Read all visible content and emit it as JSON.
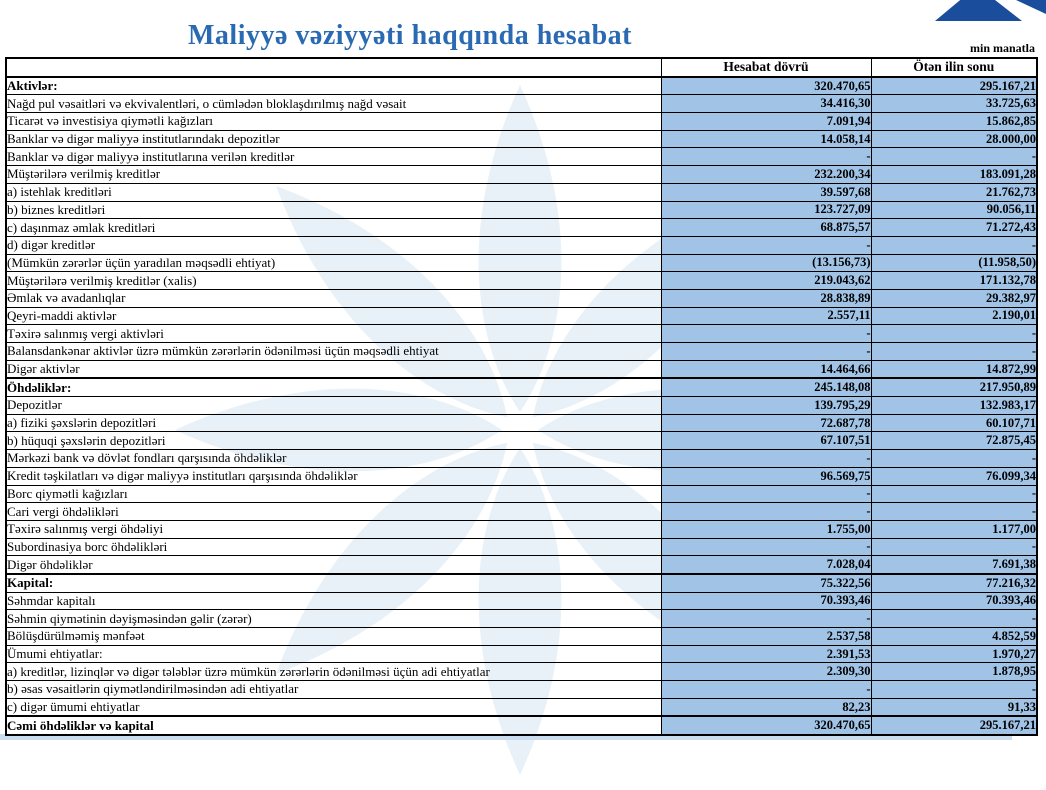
{
  "header": {
    "title": "Maliyyə vəziyyəti haqqında hesabat",
    "unit_note": "min manatla"
  },
  "colors": {
    "title_blue": "#2a6ab2",
    "cell_fill_blue": "#a0c3e6",
    "logo_navy": "#1a4e9c",
    "watermark_blue": "#e8f1f8"
  },
  "logo": {
    "name": "bank-logo"
  },
  "table": {
    "columns": [
      "",
      "Hesabat dövrü",
      "Ötən ilin sonu"
    ],
    "rows": [
      {
        "label": "Aktivlər:",
        "current": "320.470,65",
        "previous": "295.167,21",
        "bold": true,
        "section": true
      },
      {
        "label": "Nağd pul vəsaitləri və  ekvivalentləri, o cümlədən bloklaşdırılmış nağd vəsait",
        "current": "34.416,30",
        "previous": "33.725,63",
        "bold": false,
        "section": false
      },
      {
        "label": "Ticarət və investisiya qiymətli kağızları",
        "current": "7.091,94",
        "previous": "15.862,85",
        "bold": false,
        "section": false
      },
      {
        "label": "Banklar və digər maliyyə institutlarındakı depozitlər",
        "current": "14.058,14",
        "previous": "28.000,00",
        "bold": false,
        "section": false
      },
      {
        "label": "Banklar və digər maliyyə institutlarına verilən kreditlər",
        "current": "-",
        "previous": "-",
        "bold": false,
        "section": false
      },
      {
        "label": "Müştərilərə verilmiş kreditlər",
        "current": "232.200,34",
        "previous": "183.091,28",
        "bold": false,
        "section": false
      },
      {
        "label": "a) istehlak kreditləri",
        "current": "39.597,68",
        "previous": "21.762,73",
        "bold": false,
        "section": false
      },
      {
        "label": "b) biznes kreditləri",
        "current": "123.727,09",
        "previous": "90.056,11",
        "bold": false,
        "section": false
      },
      {
        "label": "c) daşınmaz əmlak kreditləri",
        "current": "68.875,57",
        "previous": "71.272,43",
        "bold": false,
        "section": false
      },
      {
        "label": "d) digər kreditlər",
        "current": "-",
        "previous": "-",
        "bold": false,
        "section": false
      },
      {
        "label": "(Mümkün zərərlər üçün yaradılan məqsədli ehtiyat)",
        "current": "(13.156,73)",
        "previous": "(11.958,50)",
        "bold": false,
        "section": false
      },
      {
        "label": "Müştərilərə verilmiş kreditlər (xalis)",
        "current": "219.043,62",
        "previous": "171.132,78",
        "bold": false,
        "section": false
      },
      {
        "label": "Əmlak və avadanlıqlar",
        "current": "28.838,89",
        "previous": "29.382,97",
        "bold": false,
        "section": false
      },
      {
        "label": "Qeyri-maddi aktivlər",
        "current": "2.557,11",
        "previous": "2.190,01",
        "bold": false,
        "section": false
      },
      {
        "label": "Təxirə salınmış vergi aktivləri",
        "current": "-",
        "previous": "-",
        "bold": false,
        "section": false
      },
      {
        "label": "Balansdankənar aktivlər üzrə mümkün zərərlərin ödənilməsi üçün məqsədli ehtiyat",
        "current": "-",
        "previous": "-",
        "bold": false,
        "section": false
      },
      {
        "label": "Digər aktivlər",
        "current": "14.464,66",
        "previous": "14.872,99",
        "bold": false,
        "section": false
      },
      {
        "label": "Öhdəliklər:",
        "current": "245.148,08",
        "previous": "217.950,89",
        "bold": true,
        "section": true
      },
      {
        "label": "Depozitlər",
        "current": "139.795,29",
        "previous": "132.983,17",
        "bold": false,
        "section": false
      },
      {
        "label": "a) fiziki şəxslərin depozitləri",
        "current": "72.687,78",
        "previous": "60.107,71",
        "bold": false,
        "section": false
      },
      {
        "label": "b) hüquqi şəxslərin depozitləri",
        "current": "67.107,51",
        "previous": "72.875,45",
        "bold": false,
        "section": false
      },
      {
        "label": "Mərkəzi bank və dövlət fondları qarşısında öhdəliklər",
        "current": "-",
        "previous": "-",
        "bold": false,
        "section": false
      },
      {
        "label": "Kredit təşkilatları və digər maliyyə institutları qarşısında öhdəliklər",
        "current": "96.569,75",
        "previous": "76.099,34",
        "bold": false,
        "section": false
      },
      {
        "label": "Borc qiymətli kağızları",
        "current": "-",
        "previous": "-",
        "bold": false,
        "section": false
      },
      {
        "label": "Cari vergi öhdəlikləri",
        "current": "-",
        "previous": "-",
        "bold": false,
        "section": false
      },
      {
        "label": "Təxirə salınmış vergi öhdəliyi",
        "current": "1.755,00",
        "previous": "1.177,00",
        "bold": false,
        "section": false
      },
      {
        "label": "Subordinasiya borc öhdəlikləri",
        "current": "-",
        "previous": "-",
        "bold": false,
        "section": false
      },
      {
        "label": "Digər öhdəliklər",
        "current": "7.028,04",
        "previous": "7.691,38",
        "bold": false,
        "section": false
      },
      {
        "label": "Kapital:",
        "current": "75.322,56",
        "previous": "77.216,32",
        "bold": true,
        "section": true
      },
      {
        "label": "Səhmdar kapitalı",
        "current": "70.393,46",
        "previous": "70.393,46",
        "bold": false,
        "section": false
      },
      {
        "label": "Səhmin qiymətinin dəyişməsindən gəlir (zərər)",
        "current": "-",
        "previous": "-",
        "bold": false,
        "section": false
      },
      {
        "label": "Bölüşdürülməmiş mənfəət",
        "current": "2.537,58",
        "previous": "4.852,59",
        "bold": false,
        "section": false
      },
      {
        "label": "Ümumi ehtiyatlar:",
        "current": "2.391,53",
        "previous": "1.970,27",
        "bold": false,
        "section": false
      },
      {
        "label": "a) kreditlər, lizinqlər və digər tələblər üzrə mümkün zərərlərin ödənilməsi üçün adi ehtiyatlar",
        "current": "2.309,30",
        "previous": "1.878,95",
        "bold": false,
        "section": false
      },
      {
        "label": "b) əsas vəsaitlərin qiymətləndirilməsindən adi ehtiyatlar",
        "current": "-",
        "previous": "-",
        "bold": false,
        "section": false
      },
      {
        "label": "c) digər ümumi ehtiyatlar",
        "current": "82,23",
        "previous": "91,33",
        "bold": false,
        "section": false
      },
      {
        "label": "Cəmi öhdəliklər və kapital",
        "current": "320.470,65",
        "previous": "295.167,21",
        "bold": true,
        "section": true
      }
    ]
  }
}
